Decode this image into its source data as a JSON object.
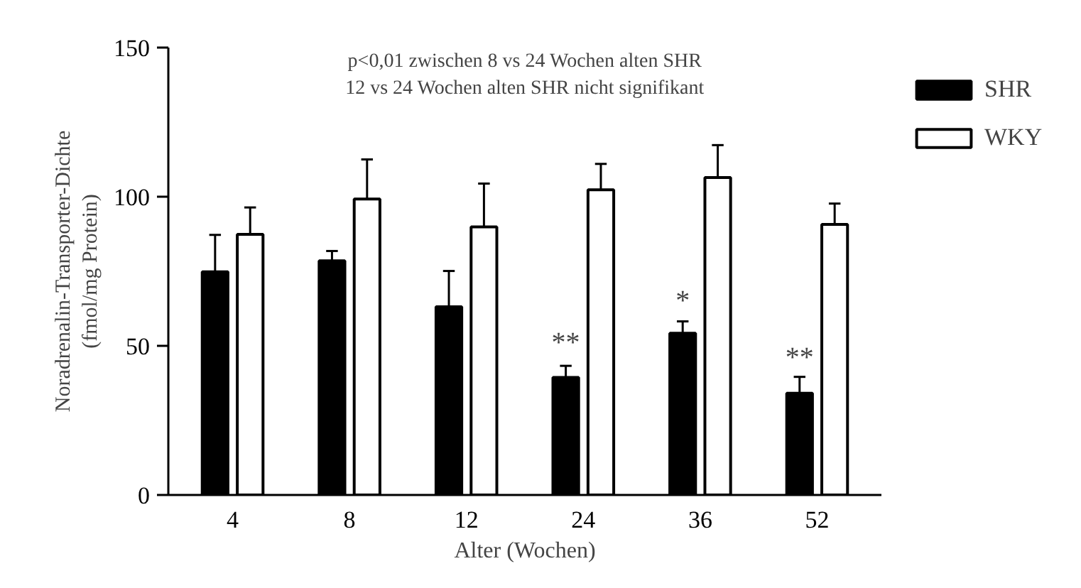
{
  "chart_data": {
    "type": "bar",
    "xlabel": "Alter (Wochen)",
    "ylabel": "Noradrenalin-Transporter-Dichte\n(fmol/mg Protein)",
    "categories": [
      "4",
      "8",
      "12",
      "24",
      "36",
      "52"
    ],
    "series": [
      {
        "name": "SHR",
        "color": "#000000",
        "values": [
          74.8,
          78.5,
          63.1,
          39.4,
          54.2,
          34.1
        ],
        "errors": [
          12.4,
          3.3,
          12,
          3.9,
          4,
          5.5
        ]
      },
      {
        "name": "WKY",
        "color": "#ffffff",
        "values": [
          87.4,
          99.2,
          89.9,
          102.3,
          106.4,
          90.7
        ],
        "errors": [
          9,
          13.3,
          14.5,
          8.7,
          10.9,
          7
        ]
      }
    ],
    "ylim": [
      0,
      150
    ],
    "yticks": [
      0,
      50,
      100,
      150
    ],
    "grid": false,
    "legend": "top right",
    "annotations": [
      "p<0,01 zwischen 8 vs 24 Wochen alten SHR",
      "12 vs 24 Wochen alten SHR nicht signifikant",
      {
        "text": "**",
        "x": "24",
        "y": 51
      },
      {
        "text": "*",
        "x": "36",
        "y": 65
      },
      {
        "text": "**",
        "x": "52",
        "y": 46
      }
    ]
  }
}
